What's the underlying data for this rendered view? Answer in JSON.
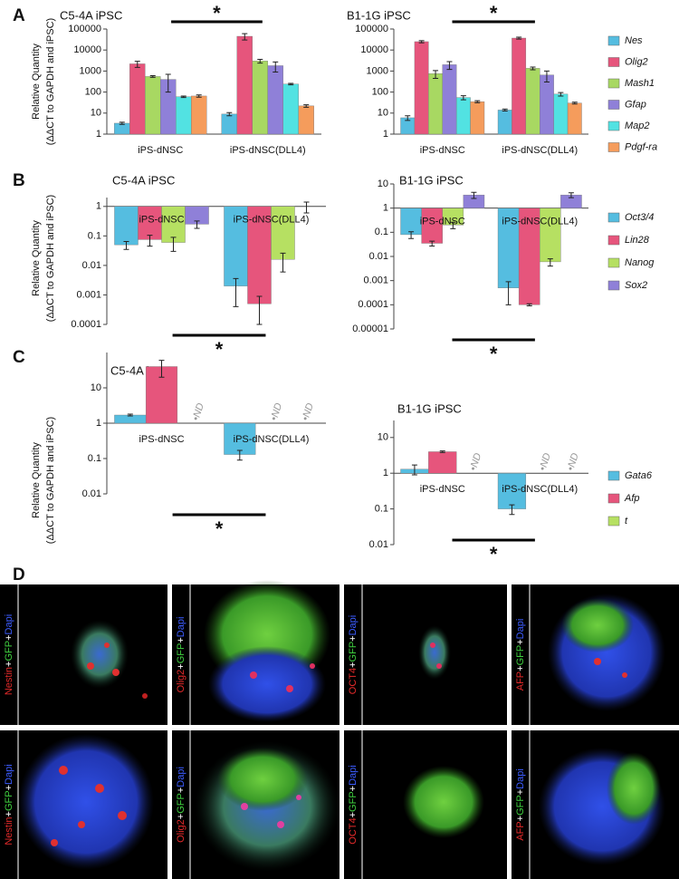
{
  "chart_data": [
    {
      "type": "bar",
      "panel": "A",
      "log_scale": true,
      "legend": "right",
      "ylabel": [
        "Relative Quantity",
        "(ΔΔCT to GAPDH and iPSC)"
      ],
      "categories": [
        "iPS-dNSC",
        "iPS-dNSC(DLL4)",
        "iPS-dNSC",
        "iPS-dNSC(DLL4)"
      ],
      "subplots": [
        {
          "title": "C5-4A iPSC",
          "ylim": [
            1,
            100000
          ],
          "yticks": [
            1,
            10,
            100,
            1000,
            10000,
            100000
          ],
          "significance": "*"
        },
        {
          "title": "B1-1G iPSC",
          "ylim": [
            1,
            100000
          ],
          "yticks": [
            1,
            10,
            100,
            1000,
            10000,
            100000
          ],
          "significance": "*"
        }
      ],
      "series": [
        {
          "name": "Nes",
          "color": "#55bde0",
          "values": [
            3.3,
            9,
            6,
            14
          ],
          "errors": [
            0.4,
            1.5,
            1.5,
            1.5
          ]
        },
        {
          "name": "Olig2",
          "color": "#e6557c",
          "values": [
            2200,
            45000,
            25000,
            37000
          ],
          "errors": [
            700,
            15000,
            3000,
            4000
          ]
        },
        {
          "name": "Mash1",
          "color": "#a8d862",
          "values": [
            550,
            3000,
            750,
            1350
          ],
          "errors": [
            50,
            600,
            300,
            200
          ]
        },
        {
          "name": "Gfap",
          "color": "#8f80d8",
          "values": [
            400,
            1800,
            2000,
            650
          ],
          "errors": [
            300,
            900,
            800,
            350
          ]
        },
        {
          "name": "Map2",
          "color": "#52e2e2",
          "values": [
            60,
            240,
            55,
            80
          ],
          "errors": [
            5,
            20,
            12,
            15
          ]
        },
        {
          "name": "Pdgf-ra",
          "color": "#f59c5c",
          "values": [
            65,
            22,
            35,
            30
          ],
          "errors": [
            8,
            3,
            4,
            3
          ]
        }
      ]
    },
    {
      "type": "bar",
      "panel": "B",
      "log_scale": true,
      "legend": "right",
      "ylabel": [
        "Relative Quantity",
        "(ΔΔCT to GAPDH and iPSC)"
      ],
      "categories": [
        "iPS-dNSC",
        "iPS-dNSC(DLL4)",
        "iPS-dNSC",
        "iPS-dNSC(DLL4)"
      ],
      "subplots": [
        {
          "title": "C5-4A iPSC",
          "ylim": [
            0.0001,
            2
          ],
          "yticks": [
            0.0001,
            0.001,
            0.01,
            0.1,
            1
          ],
          "significance": "*"
        },
        {
          "title": "B1-1G iPSC",
          "ylim": [
            1e-05,
            10
          ],
          "yticks": [
            1e-05,
            0.0001,
            0.001,
            0.01,
            0.1,
            1,
            10
          ],
          "significance": "*"
        }
      ],
      "series": [
        {
          "name": "Oct3/4",
          "color": "#55bde0",
          "values": [
            0.05,
            0.002,
            0.08,
            0.0005
          ],
          "errors": [
            0.015,
            0.0016,
            0.025,
            0.0004
          ]
        },
        {
          "name": "Lin28",
          "color": "#e6557c",
          "values": [
            0.075,
            0.0005,
            0.035,
            0.0001
          ],
          "errors": [
            0.03,
            0.0004,
            0.008,
            1e-05
          ]
        },
        {
          "name": "Nanog",
          "color": "#b6e062",
          "values": [
            0.06,
            0.016,
            0.2,
            0.006
          ],
          "errors": [
            0.03,
            0.01,
            0.06,
            0.002
          ]
        },
        {
          "name": "Sox2",
          "color": "#8f80d8",
          "values": [
            0.25,
            1,
            3.5,
            3.5
          ],
          "errors": [
            0.07,
            0.4,
            1,
            0.8
          ]
        }
      ]
    },
    {
      "type": "bar",
      "panel": "C",
      "log_scale": true,
      "legend": "right",
      "ylabel": [
        "Relative Quantity",
        "(ΔΔCT to GAPDH and iPSC)"
      ],
      "categories": [
        "iPS-dNSC",
        "iPS-dNSC(DLL4)",
        "iPS-dNSC",
        "iPS-dNSC(DLL4)"
      ],
      "subplots": [
        {
          "title": "C5-4A iPSC",
          "ylim": [
            0.01,
            100
          ],
          "yticks": [
            0.01,
            0.1,
            1,
            10
          ],
          "significance": "*"
        },
        {
          "title": "B1-1G iPSC",
          "ylim": [
            0.01,
            30
          ],
          "yticks": [
            0.01,
            0.1,
            1,
            10
          ],
          "significance": "*"
        }
      ],
      "series": [
        {
          "name": "Gata6",
          "color": "#55bde0",
          "values": [
            1.7,
            0.13,
            1.3,
            0.1
          ],
          "errors": [
            0.1,
            0.04,
            0.4,
            0.03
          ]
        },
        {
          "name": "Afp",
          "color": "#e6557c",
          "values": [
            40,
            null,
            4,
            null
          ],
          "errors": [
            20,
            null,
            0.2,
            null
          ],
          "value_labels": [
            null,
            "•ND",
            null,
            "•ND"
          ]
        },
        {
          "name": "t",
          "color": "#b6e062",
          "values": [
            null,
            null,
            null,
            null
          ],
          "errors": [
            null,
            null,
            null,
            null
          ],
          "value_labels": [
            "•ND",
            "•ND",
            "•ND",
            "•ND"
          ]
        }
      ]
    }
  ],
  "panel_d": {
    "panel": "D",
    "stains": [
      [
        "Nestin",
        "+",
        "GFP",
        "+",
        "Dapi"
      ],
      [
        "Olig2",
        "+",
        "GFP",
        "+",
        "Dapi"
      ],
      [
        "OCT4",
        "+",
        "GFP",
        "+",
        "Dapi"
      ],
      [
        "AFP",
        "+",
        "GFP",
        "+",
        "Dapi"
      ]
    ]
  }
}
